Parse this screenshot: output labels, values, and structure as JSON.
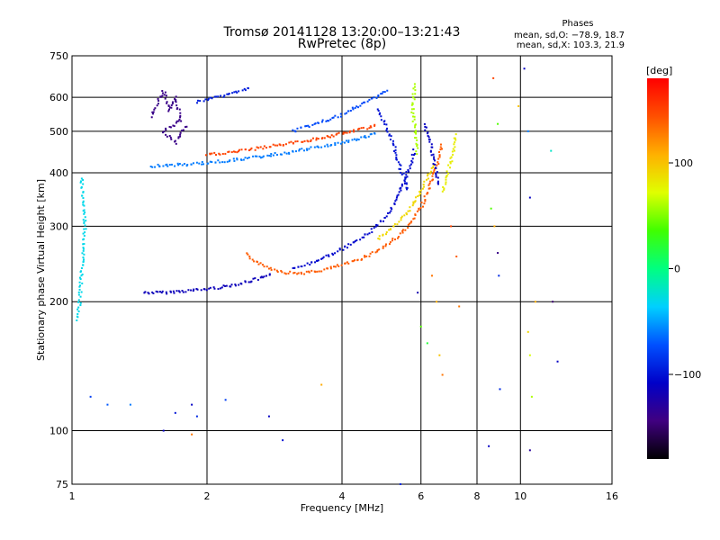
{
  "chart_data": {
    "type": "scatter",
    "title": "Tromsø 20141128 13:20:00–13:21:43",
    "subtitle": "RwPretec (8p)",
    "xlabel": "Frequency [MHz]",
    "ylabel": "Stationary phase Virtual Height [km]",
    "x_scale": "log",
    "y_scale": "log",
    "xlim": [
      1,
      16
    ],
    "ylim": [
      75,
      750
    ],
    "x_ticks": [
      1,
      2,
      4,
      6,
      8,
      10,
      16
    ],
    "x_tick_labels": [
      "1",
      "2",
      "4",
      "6",
      "8",
      "10",
      "16"
    ],
    "y_ticks": [
      75,
      100,
      200,
      300,
      400,
      500,
      600,
      750
    ],
    "y_tick_labels": [
      "75",
      "100",
      "200",
      "300",
      "400",
      "500",
      "600",
      "750"
    ],
    "grid": true,
    "stats": {
      "heading": "Phases",
      "line_o": "mean, sd,O: −78.9, 18.7",
      "line_x": "mean, sd,X: 103.3, 21.9"
    },
    "colorbar": {
      "label": "[deg]",
      "range": [
        -180,
        180
      ],
      "ticks": [
        100,
        0,
        -100
      ],
      "tick_labels": [
        "100",
        "0",
        "−100"
      ],
      "colormap": [
        "#000000",
        "#400080",
        "#0000c8",
        "#0050ff",
        "#00d0ff",
        "#00ff80",
        "#40ff00",
        "#e0ff00",
        "#ffb000",
        "#ff5000",
        "#ff0000"
      ]
    },
    "series": [
      {
        "trace": [
          [
            1.45,
            210
          ],
          [
            1.6,
            210
          ],
          [
            1.8,
            212
          ],
          [
            2.0,
            214
          ],
          [
            2.2,
            217
          ],
          [
            2.4,
            221
          ],
          [
            2.6,
            226
          ],
          [
            2.8,
            231
          ]
        ],
        "phase": -115
      },
      {
        "trace": [
          [
            2.45,
            258
          ],
          [
            2.55,
            250
          ],
          [
            2.7,
            242
          ],
          [
            2.85,
            237
          ],
          [
            3.0,
            234
          ],
          [
            3.2,
            233
          ],
          [
            3.5,
            235
          ],
          [
            3.8,
            240
          ],
          [
            4.2,
            247
          ],
          [
            4.6,
            257
          ],
          [
            5.0,
            270
          ],
          [
            5.4,
            287
          ],
          [
            5.7,
            305
          ],
          [
            6.0,
            332
          ],
          [
            6.2,
            358
          ],
          [
            6.4,
            392
          ],
          [
            6.55,
            425
          ],
          [
            6.7,
            470
          ]
        ],
        "phase": 140
      },
      {
        "trace": [
          [
            3.1,
            238
          ],
          [
            3.4,
            246
          ],
          [
            3.8,
            258
          ],
          [
            4.2,
            272
          ],
          [
            4.6,
            290
          ],
          [
            5.0,
            315
          ],
          [
            5.3,
            345
          ],
          [
            5.5,
            380
          ],
          [
            5.7,
            420
          ],
          [
            5.8,
            455
          ]
        ],
        "phase": -105
      },
      {
        "trace": [
          [
            4.8,
            280
          ],
          [
            5.2,
            298
          ],
          [
            5.6,
            322
          ],
          [
            5.9,
            352
          ],
          [
            6.2,
            388
          ],
          [
            6.4,
            420
          ]
        ],
        "phase": 90
      },
      {
        "trace": [
          [
            6.7,
            360
          ],
          [
            6.9,
            405
          ],
          [
            7.1,
            450
          ],
          [
            7.2,
            495
          ]
        ],
        "phase": 80
      },
      {
        "trace": [
          [
            1.5,
            415
          ],
          [
            1.8,
            418
          ],
          [
            2.1,
            424
          ],
          [
            2.5,
            433
          ],
          [
            3.0,
            445
          ],
          [
            3.5,
            458
          ],
          [
            4.0,
            470
          ],
          [
            4.5,
            484
          ],
          [
            4.8,
            495
          ]
        ],
        "phase": -60
      },
      {
        "trace": [
          [
            2.0,
            440
          ],
          [
            2.4,
            450
          ],
          [
            2.8,
            462
          ],
          [
            3.2,
            472
          ],
          [
            3.6,
            482
          ],
          [
            4.0,
            493
          ],
          [
            4.4,
            505
          ],
          [
            4.8,
            518
          ]
        ],
        "phase": 150
      },
      {
        "trace": [
          [
            3.1,
            500
          ],
          [
            3.5,
            520
          ],
          [
            4.0,
            545
          ],
          [
            4.4,
            575
          ],
          [
            4.8,
            605
          ],
          [
            5.1,
            625
          ]
        ],
        "phase": -75
      },
      {
        "trace": [
          [
            1.9,
            585
          ],
          [
            2.1,
            600
          ],
          [
            2.3,
            615
          ],
          [
            2.5,
            632
          ]
        ],
        "phase": -95
      },
      {
        "trace": [
          [
            4.8,
            560
          ],
          [
            5.0,
            520
          ],
          [
            5.2,
            470
          ],
          [
            5.3,
            430
          ],
          [
            5.5,
            390
          ],
          [
            5.6,
            360
          ]
        ],
        "phase": -100
      },
      {
        "trace": [
          [
            6.1,
            520
          ],
          [
            6.3,
            470
          ],
          [
            6.4,
            430
          ],
          [
            6.5,
            400
          ],
          [
            6.6,
            370
          ]
        ],
        "phase": -110
      },
      {
        "trace": [
          [
            1.5,
            540
          ],
          [
            1.55,
            580
          ],
          [
            1.6,
            620
          ],
          [
            1.65,
            560
          ],
          [
            1.7,
            600
          ],
          [
            1.75,
            530
          ],
          [
            1.6,
            500
          ],
          [
            1.7,
            470
          ],
          [
            1.8,
            520
          ]
        ],
        "phase": -140
      },
      {
        "trace": [
          [
            1.05,
            390
          ],
          [
            1.06,
            340
          ],
          [
            1.07,
            300
          ],
          [
            1.06,
            260
          ],
          [
            1.05,
            230
          ],
          [
            1.04,
            200
          ],
          [
            1.03,
            180
          ]
        ],
        "phase": -30
      },
      {
        "trace": [
          [
            5.8,
            640
          ],
          [
            5.75,
            560
          ],
          [
            5.8,
            520
          ],
          [
            5.85,
            480
          ],
          [
            5.9,
            440
          ]
        ],
        "phase": 60
      }
    ],
    "scatter": [
      [
        1.1,
        120,
        -80
      ],
      [
        1.2,
        115,
        -70
      ],
      [
        1.35,
        115,
        -60
      ],
      [
        1.6,
        100,
        -110
      ],
      [
        1.7,
        110,
        -100
      ],
      [
        1.85,
        115,
        -110
      ],
      [
        1.9,
        108,
        -90
      ],
      [
        2.2,
        118,
        -80
      ],
      [
        2.75,
        108,
        -110
      ],
      [
        2.95,
        95,
        -100
      ],
      [
        1.85,
        98,
        130
      ],
      [
        3.6,
        128,
        110
      ],
      [
        5.4,
        75,
        -90
      ],
      [
        5.9,
        210,
        -120
      ],
      [
        6.0,
        175,
        40
      ],
      [
        6.2,
        160,
        20
      ],
      [
        6.35,
        230,
        130
      ],
      [
        6.5,
        200,
        110
      ],
      [
        6.6,
        150,
        100
      ],
      [
        6.7,
        135,
        130
      ],
      [
        7.0,
        300,
        150
      ],
      [
        7.2,
        255,
        140
      ],
      [
        7.3,
        195,
        130
      ],
      [
        8.7,
        665,
        150
      ],
      [
        8.9,
        520,
        40
      ],
      [
        8.6,
        330,
        40
      ],
      [
        8.75,
        300,
        110
      ],
      [
        8.9,
        260,
        -140
      ],
      [
        8.95,
        230,
        -90
      ],
      [
        9.0,
        125,
        -90
      ],
      [
        8.5,
        92,
        -110
      ],
      [
        9.9,
        572,
        100
      ],
      [
        10.2,
        700,
        -110
      ],
      [
        10.4,
        500,
        -60
      ],
      [
        10.5,
        350,
        -110
      ],
      [
        10.4,
        170,
        90
      ],
      [
        10.5,
        150,
        70
      ],
      [
        10.6,
        120,
        60
      ],
      [
        10.5,
        90,
        -130
      ],
      [
        10.8,
        200,
        110
      ],
      [
        11.7,
        450,
        -20
      ],
      [
        11.8,
        200,
        -150
      ],
      [
        12.1,
        145,
        -110
      ]
    ]
  }
}
